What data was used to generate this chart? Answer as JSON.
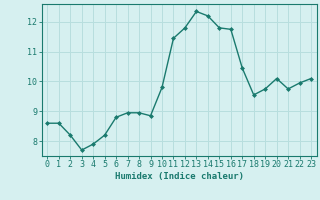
{
  "x": [
    0,
    1,
    2,
    3,
    4,
    5,
    6,
    7,
    8,
    9,
    10,
    11,
    12,
    13,
    14,
    15,
    16,
    17,
    18,
    19,
    20,
    21,
    22,
    23
  ],
  "y": [
    8.6,
    8.6,
    8.2,
    7.7,
    7.9,
    8.2,
    8.8,
    8.95,
    8.95,
    8.85,
    9.8,
    11.45,
    11.8,
    12.35,
    12.2,
    11.8,
    11.75,
    10.45,
    9.55,
    9.75,
    10.1,
    9.75,
    9.95,
    10.1
  ],
  "line_color": "#1a7a6e",
  "marker_color": "#1a7a6e",
  "bg_color": "#d6f0f0",
  "grid_color": "#b8dede",
  "axis_color": "#1a7a6e",
  "xlabel": "Humidex (Indice chaleur)",
  "ylim": [
    7.5,
    12.6
  ],
  "xlim": [
    -0.5,
    23.5
  ],
  "yticks": [
    8,
    9,
    10,
    11,
    12
  ],
  "xticks": [
    0,
    1,
    2,
    3,
    4,
    5,
    6,
    7,
    8,
    9,
    10,
    11,
    12,
    13,
    14,
    15,
    16,
    17,
    18,
    19,
    20,
    21,
    22,
    23
  ],
  "label_fontsize": 6.5,
  "tick_fontsize": 6.0
}
